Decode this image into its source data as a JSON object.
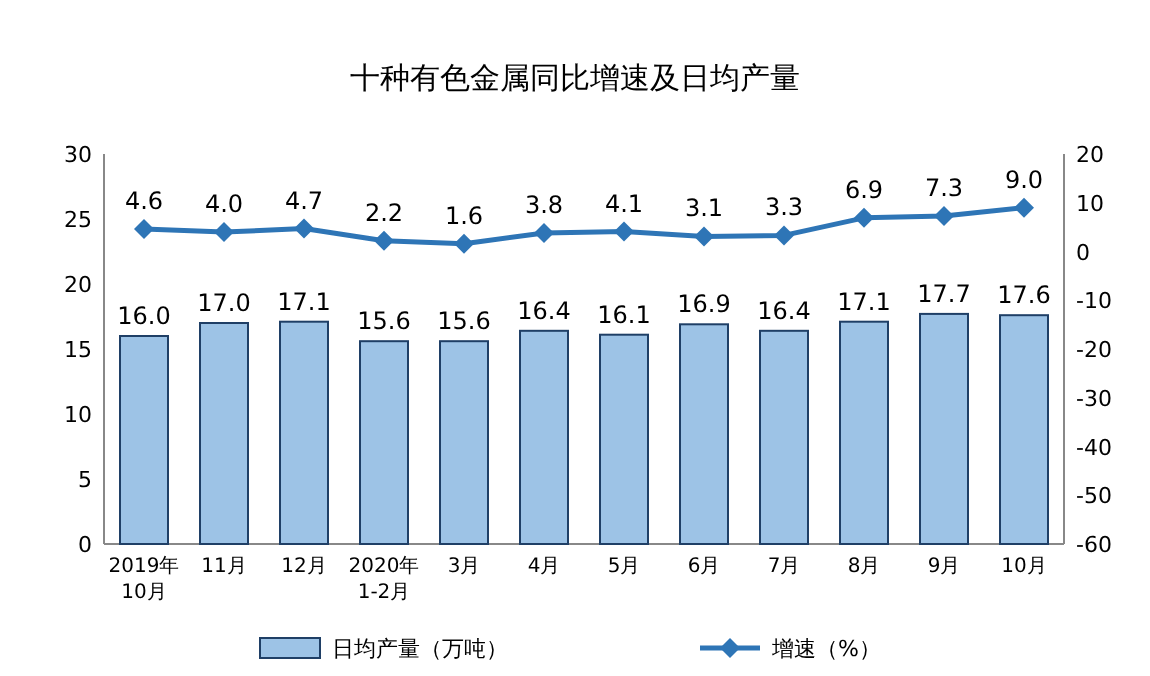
{
  "chart_data": {
    "type": "bar",
    "title": "十种有色金属同比增速及日均产量",
    "categories": [
      "2019年\n10月",
      "11月",
      "12月",
      "2020年\n1-2月",
      "3月",
      "4月",
      "5月",
      "6月",
      "7月",
      "8月",
      "9月",
      "10月"
    ],
    "series": [
      {
        "name": "日均产量（万吨）",
        "color": "#9dc3e6",
        "values": [
          16.0,
          17.0,
          17.1,
          15.6,
          15.6,
          16.4,
          16.1,
          16.9,
          16.4,
          17.1,
          17.7,
          17.6
        ],
        "value_labels": [
          "16.0",
          "17.0",
          "17.1",
          "15.6",
          "15.6",
          "16.4",
          "16.1",
          "16.9",
          "16.4",
          "17.1",
          "17.7",
          "17.6"
        ]
      },
      {
        "name": "增速（%）",
        "type": "line",
        "axis": "y2",
        "color": "#2e75b6",
        "marker": "diamond",
        "values": [
          4.6,
          4.0,
          4.7,
          2.2,
          1.6,
          3.8,
          4.1,
          3.1,
          3.3,
          6.9,
          7.3,
          9.0
        ],
        "value_labels": [
          "4.6",
          "4.0",
          "4.7",
          "2.2",
          "1.6",
          "3.8",
          "4.1",
          "3.1",
          "3.3",
          "6.9",
          "7.3",
          "9.0"
        ]
      }
    ],
    "ylim": [
      0,
      30
    ],
    "yticks": [
      0,
      5,
      10,
      15,
      20,
      25,
      30
    ],
    "y2lim": [
      -60,
      20
    ],
    "y2ticks": [
      -60,
      -50,
      -40,
      -30,
      -20,
      -10,
      0,
      10,
      20
    ],
    "legend": "bottom"
  }
}
